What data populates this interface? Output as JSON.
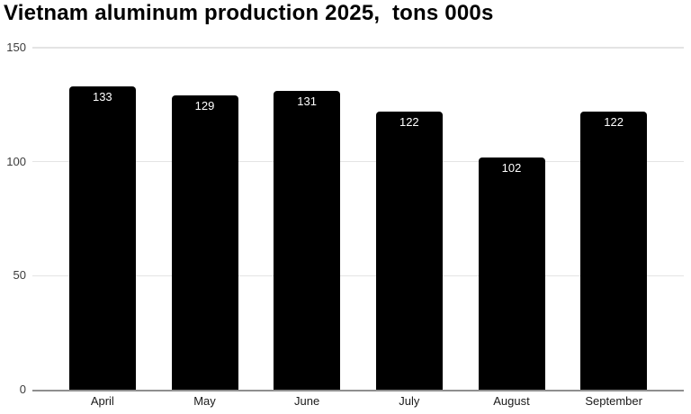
{
  "chart_data": {
    "type": "bar",
    "title": "Vietnam aluminum production 2025,  tons 000s",
    "categories": [
      "April",
      "May",
      "June",
      "July",
      "August",
      "September"
    ],
    "values": [
      133,
      129,
      131,
      122,
      102,
      122
    ],
    "xlabel": "",
    "ylabel": "",
    "ylim": [
      0,
      150
    ],
    "yticks": [
      0,
      50,
      100,
      150
    ],
    "grid": true,
    "legend": "none",
    "colors": {
      "bar": "#000000",
      "value_label": "#ffffff",
      "gridline": "#e4e4e4",
      "axis_line": "#8f8f8f",
      "y_tick_label": "#3c3c3c",
      "x_category_label": "#1a1a1a",
      "title": "#000000",
      "background": "#ffffff"
    }
  }
}
